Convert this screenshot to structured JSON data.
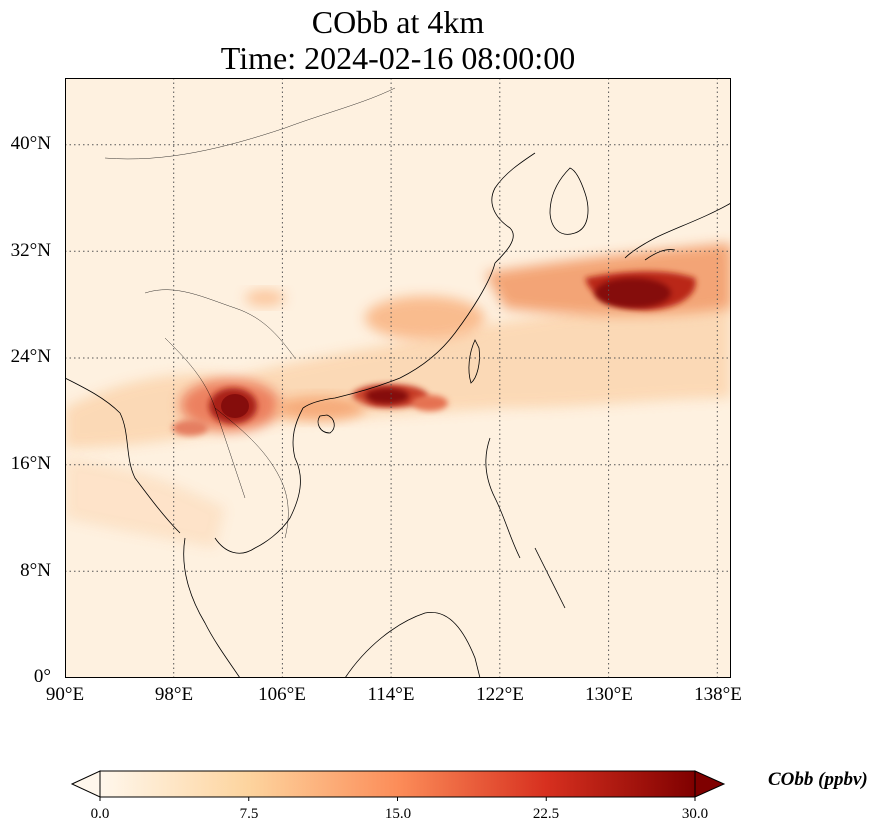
{
  "title": {
    "line1": "CObb at 4km",
    "line2": "Time: 2024-02-16 08:00:00"
  },
  "map": {
    "projection": "PlateCarree",
    "extent_lon": [
      90,
      139
    ],
    "extent_lat": [
      0,
      45
    ],
    "lat_ticks": [
      {
        "value": 0,
        "label": "0°"
      },
      {
        "value": 8,
        "label": "8°N"
      },
      {
        "value": 16,
        "label": "16°N"
      },
      {
        "value": 24,
        "label": "24°N"
      },
      {
        "value": 32,
        "label": "32°N"
      },
      {
        "value": 40,
        "label": "40°N"
      }
    ],
    "lon_ticks": [
      {
        "value": 90,
        "label": "90°E"
      },
      {
        "value": 98,
        "label": "98°E"
      },
      {
        "value": 106,
        "label": "106°E"
      },
      {
        "value": 114,
        "label": "114°E"
      },
      {
        "value": 122,
        "label": "122°E"
      },
      {
        "value": 130,
        "label": "130°E"
      },
      {
        "value": 138,
        "label": "138°E"
      }
    ],
    "gridlines": "dotted",
    "background_color": "#fef1e0"
  },
  "colorbar": {
    "label": "CObb (ppbv)",
    "min": 0.0,
    "max": 30.0,
    "extend": "both",
    "colormap": "OrRd",
    "ticks": [
      "0.0",
      "7.5",
      "15.0",
      "22.5",
      "30.0"
    ],
    "colors": [
      "#fff7ec",
      "#fdd49e",
      "#fc8d59",
      "#d7301f",
      "#7f0000"
    ]
  }
}
